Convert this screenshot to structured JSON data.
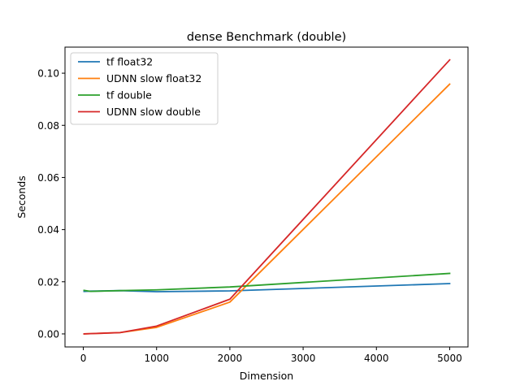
{
  "chart_data": {
    "type": "line",
    "title": "dense Benchmark (double)",
    "xlabel": "Dimension",
    "ylabel": "Seconds",
    "xlim": [
      -250,
      5250
    ],
    "ylim": [
      -0.005,
      0.11
    ],
    "xticks": [
      0,
      1000,
      2000,
      3000,
      4000,
      5000
    ],
    "xtick_labels": [
      "0",
      "1000",
      "2000",
      "3000",
      "4000",
      "5000"
    ],
    "yticks": [
      0.0,
      0.02,
      0.04,
      0.06,
      0.08,
      0.1
    ],
    "ytick_labels": [
      "0.00",
      "0.02",
      "0.04",
      "0.06",
      "0.08",
      "0.10"
    ],
    "grid": false,
    "legend_position": "top-left",
    "series": [
      {
        "name": "tf float32",
        "color": "#1f77b4",
        "x": [
          10,
          100,
          500,
          1000,
          2000,
          5000
        ],
        "y": [
          0.0163,
          0.0164,
          0.0166,
          0.0162,
          0.0165,
          0.0193
        ]
      },
      {
        "name": "UDNN slow float32",
        "color": "#ff7f0e",
        "x": [
          10,
          100,
          500,
          1000,
          2000,
          5000
        ],
        "y": [
          0.0,
          0.0001,
          0.0005,
          0.0025,
          0.0122,
          0.0958
        ]
      },
      {
        "name": "tf double",
        "color": "#2ca02c",
        "x": [
          10,
          100,
          500,
          1000,
          2000,
          5000
        ],
        "y": [
          0.0167,
          0.0163,
          0.0166,
          0.0169,
          0.018,
          0.0232
        ]
      },
      {
        "name": "UDNN slow double",
        "color": "#d62728",
        "x": [
          10,
          100,
          500,
          1000,
          2000,
          5000
        ],
        "y": [
          0.0,
          0.0001,
          0.0005,
          0.003,
          0.0133,
          0.1051
        ]
      }
    ]
  }
}
